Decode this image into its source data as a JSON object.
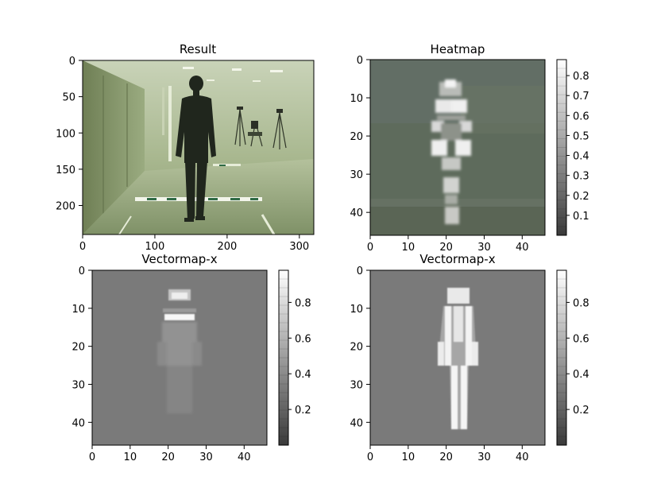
{
  "chart_data": [
    {
      "type": "heatmap",
      "title": "Result",
      "xlim": [
        0,
        320
      ],
      "ylim": [
        240,
        0
      ],
      "xticks": [
        0,
        100,
        200,
        300
      ],
      "yticks": [
        0,
        50,
        100,
        150,
        200
      ],
      "colorbar": null
    },
    {
      "type": "heatmap",
      "title": "Heatmap",
      "xlim": [
        0,
        46
      ],
      "ylim": [
        46,
        0
      ],
      "xticks": [
        0,
        10,
        20,
        30,
        40
      ],
      "yticks": [
        0,
        10,
        20,
        30,
        40
      ],
      "colorbar": {
        "range": [
          0,
          0.88
        ],
        "ticks": [
          0.1,
          0.2,
          0.3,
          0.4,
          0.5,
          0.6,
          0.7,
          0.8
        ]
      }
    },
    {
      "type": "heatmap",
      "title": "Vectormap-x",
      "xlim": [
        0,
        46
      ],
      "ylim": [
        46,
        0
      ],
      "xticks": [
        0,
        10,
        20,
        30,
        40
      ],
      "yticks": [
        0,
        10,
        20,
        30,
        40
      ],
      "colorbar": {
        "range": [
          0,
          0.98
        ],
        "ticks": [
          0.2,
          0.4,
          0.6,
          0.8
        ]
      }
    },
    {
      "type": "heatmap",
      "title": "Vectormap-x",
      "xlim": [
        0,
        46
      ],
      "ylim": [
        46,
        0
      ],
      "xticks": [
        0,
        10,
        20,
        30,
        40
      ],
      "yticks": [
        0,
        10,
        20,
        30,
        40
      ],
      "colorbar": {
        "range": [
          0,
          0.98
        ],
        "ticks": [
          0.2,
          0.4,
          0.6,
          0.8
        ]
      }
    }
  ]
}
